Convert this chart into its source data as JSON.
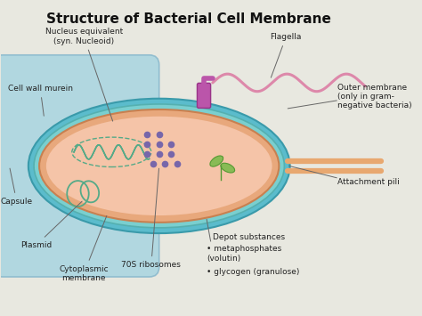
{
  "title": "Structure of Bacterial Cell Membrane",
  "title_fontsize": 11,
  "background_color": "#e8e8e0",
  "colors": {
    "capsule_fill": "#a8d4e0",
    "capsule_edge": "#88b8cc",
    "outer_mem_fill": "#5bbccc",
    "outer_mem_edge": "#3a9aaa",
    "wall_fill": "#7acfcf",
    "wall_edge": "#55b0b0",
    "cyto_mem_fill": "#e8a87c",
    "cyto_mem_edge": "#c88050",
    "cytoplasm_fill": "#f5c4a8",
    "nucleoid_color": "#55aa88",
    "plasmid_color": "#55aa88",
    "ribosome_color": "#7766aa",
    "leaf_fill": "#88bb55",
    "leaf_edge": "#559933",
    "flagella_color": "#dd88aa",
    "flagella_base_fill": "#bb55aa",
    "pili_color": "#e8a870",
    "label_color": "#222222",
    "line_color": "#666666"
  },
  "labels": {
    "nucleus_equivalent": "Nucleus equivalent\n(syn. Nucleoid)",
    "cell_wall_murein": "Cell wall murein",
    "capsule": "Capsule",
    "plasmid": "Plasmid",
    "cytoplasmic_membrane": "Cytoplasmic\nmembrane",
    "ribosomes": "70S ribosomes",
    "depot_line1": "Depot substances",
    "depot_bullets": [
      "metaphosphates\n(volutin)",
      "glycogen (granulose)"
    ],
    "flagella": "Flagella",
    "outer_membrane": "Outer membrane\n(only in gram-\nnegative bacteria)",
    "attachment_pili": "Attachment pili"
  },
  "fs": 6.5
}
